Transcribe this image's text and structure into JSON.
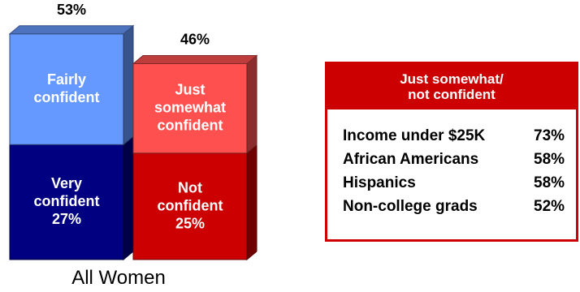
{
  "chart_data": {
    "type": "bar",
    "stacked": true,
    "category": "All Women",
    "totals": [
      "53%",
      "46%"
    ],
    "series": [
      {
        "name": "Confident",
        "total_label": "53%",
        "segments": [
          {
            "label_lines": [
              "Very",
              "confident",
              "27%"
            ],
            "value": 27,
            "color": "#000080"
          },
          {
            "label_lines": [
              "Fairly",
              "confident"
            ],
            "value": 26,
            "color": "#6699ff"
          }
        ]
      },
      {
        "name": "Not confident",
        "total_label": "46%",
        "segments": [
          {
            "label_lines": [
              "Not",
              "confident",
              "25%"
            ],
            "value": 25,
            "color": "#cc0000"
          },
          {
            "label_lines": [
              "Just",
              "somewhat",
              "confident"
            ],
            "value": 21,
            "color": "#ff5050"
          }
        ]
      }
    ]
  },
  "sidebar": {
    "title_lines": [
      "Just somewhat/",
      "not confident"
    ],
    "rows": [
      {
        "label": "Income under $25K",
        "value": "73%"
      },
      {
        "label": "African Americans",
        "value": "58%"
      },
      {
        "label": "Hispanics",
        "value": "58%"
      },
      {
        "label": "Non-college grads",
        "value": "52%"
      }
    ]
  }
}
